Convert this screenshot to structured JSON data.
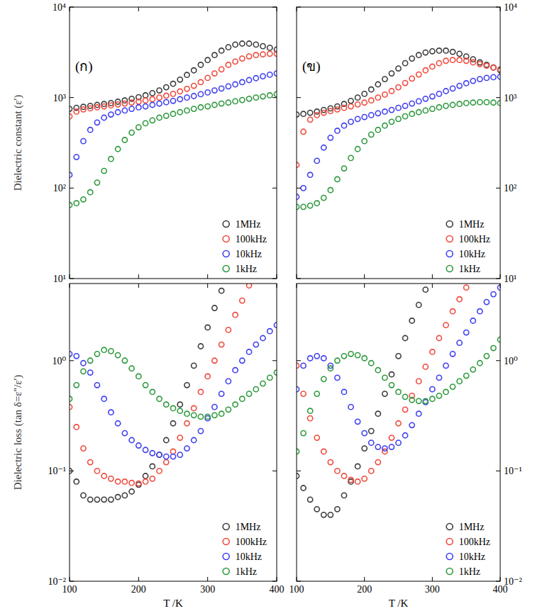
{
  "chart_data": [
    {
      "type": "scatter",
      "title": "(ก)",
      "y_label": "Dielectric constant (ε')",
      "log": "y",
      "legend": "lower right",
      "tick_labels": "y",
      "marker": "circle",
      "xlim": [
        100,
        400
      ],
      "xticks": [
        100,
        200,
        300,
        400
      ],
      "ylim": [
        10,
        10000
      ],
      "yticks": [
        {
          "value": 10,
          "label": "10¹"
        },
        {
          "value": 100,
          "label": "10²"
        },
        {
          "value": 1000,
          "label": "10³"
        },
        {
          "value": 10000,
          "label": "10⁴"
        }
      ],
      "x": [
        100,
        110,
        120,
        130,
        140,
        150,
        160,
        170,
        180,
        190,
        200,
        210,
        220,
        230,
        240,
        250,
        260,
        270,
        280,
        290,
        300,
        310,
        320,
        330,
        340,
        350,
        360,
        370,
        380,
        390,
        400
      ],
      "series": [
        {
          "name": "1MHz",
          "color": "#3c3c3c",
          "values": [
            750,
            770,
            790,
            810,
            830,
            850,
            870,
            900,
            930,
            970,
            1010,
            1060,
            1120,
            1200,
            1300,
            1420,
            1580,
            1780,
            2000,
            2300,
            2600,
            2950,
            3300,
            3600,
            3850,
            3950,
            3950,
            3850,
            3700,
            3550,
            3400
          ]
        },
        {
          "name": "100kHz",
          "color": "#f04a3e",
          "values": [
            620,
            700,
            740,
            760,
            780,
            800,
            820,
            840,
            860,
            880,
            900,
            930,
            960,
            1000,
            1050,
            1100,
            1170,
            1250,
            1350,
            1480,
            1650,
            1850,
            2050,
            2300,
            2500,
            2700,
            2850,
            2950,
            3000,
            3050,
            3050
          ]
        },
        {
          "name": "10kHz",
          "color": "#4040f0",
          "values": [
            140,
            220,
            330,
            440,
            530,
            600,
            650,
            690,
            720,
            750,
            780,
            800,
            830,
            860,
            890,
            920,
            960,
            1000,
            1040,
            1090,
            1140,
            1200,
            1260,
            1330,
            1400,
            1480,
            1560,
            1640,
            1720,
            1790,
            1850
          ]
        },
        {
          "name": "1kHz",
          "color": "#2f9a3e",
          "values": [
            65,
            68,
            75,
            90,
            115,
            155,
            210,
            270,
            340,
            410,
            470,
            520,
            560,
            600,
            630,
            660,
            690,
            720,
            750,
            780,
            800,
            830,
            860,
            880,
            910,
            940,
            970,
            1000,
            1030,
            1060,
            1090
          ]
        }
      ]
    },
    {
      "type": "scatter",
      "title": "(ข)",
      "log": "y",
      "legend": "lower right",
      "tick_labels": "y",
      "marker": "circle",
      "xlim": [
        100,
        400
      ],
      "xticks": [
        100,
        200,
        300,
        400
      ],
      "ylim": [
        10,
        10000
      ],
      "yticks": [
        {
          "value": 10,
          "label": "10¹"
        },
        {
          "value": 100,
          "label": "10²"
        },
        {
          "value": 1000,
          "label": "10³"
        },
        {
          "value": 10000,
          "label": "10⁴"
        }
      ],
      "x": [
        100,
        110,
        120,
        130,
        140,
        150,
        160,
        170,
        180,
        190,
        200,
        210,
        220,
        230,
        240,
        250,
        260,
        270,
        280,
        290,
        300,
        310,
        320,
        330,
        340,
        350,
        360,
        370,
        380,
        390,
        400
      ],
      "series": [
        {
          "name": "1MHz",
          "color": "#3c3c3c",
          "values": [
            650,
            660,
            680,
            700,
            730,
            760,
            800,
            850,
            920,
            1000,
            1100,
            1230,
            1400,
            1600,
            1850,
            2100,
            2400,
            2700,
            2950,
            3150,
            3250,
            3300,
            3300,
            3200,
            3050,
            2850,
            2650,
            2450,
            2300,
            2150,
            2000
          ]
        },
        {
          "name": "100kHz",
          "color": "#f04a3e",
          "values": [
            180,
            420,
            570,
            640,
            680,
            710,
            740,
            770,
            800,
            840,
            880,
            930,
            1000,
            1080,
            1180,
            1300,
            1450,
            1620,
            1800,
            2000,
            2200,
            2400,
            2550,
            2600,
            2600,
            2550,
            2450,
            2350,
            2250,
            2150,
            2050
          ]
        },
        {
          "name": "10kHz",
          "color": "#4040f0",
          "values": [
            80,
            100,
            140,
            200,
            280,
            360,
            430,
            490,
            540,
            580,
            610,
            640,
            670,
            700,
            730,
            770,
            810,
            860,
            910,
            970,
            1030,
            1100,
            1180,
            1260,
            1350,
            1440,
            1530,
            1600,
            1650,
            1680,
            1700
          ]
        },
        {
          "name": "1kHz",
          "color": "#2f9a3e",
          "values": [
            62,
            62,
            64,
            68,
            78,
            95,
            125,
            165,
            215,
            270,
            330,
            390,
            440,
            490,
            540,
            580,
            620,
            660,
            690,
            720,
            750,
            780,
            810,
            830,
            850,
            870,
            880,
            890,
            890,
            880,
            870
          ]
        }
      ]
    },
    {
      "type": "scatter",
      "x_label": "T /K",
      "y_label": "Dielectric loss (tan δ=ε''/ε')",
      "log": "y",
      "legend": "lower right",
      "tick_labels": true,
      "marker": "circle",
      "xlim": [
        100,
        400
      ],
      "xticks": [
        100,
        200,
        300,
        400
      ],
      "ylim": [
        0.01,
        5
      ],
      "yticks": [
        {
          "value": 0.01,
          "label": "10⁻²"
        },
        {
          "value": 0.1,
          "label": "10⁻¹"
        },
        {
          "value": 1,
          "label": "10⁰"
        }
      ],
      "x": [
        100,
        110,
        120,
        130,
        140,
        150,
        160,
        170,
        180,
        190,
        200,
        210,
        220,
        230,
        240,
        250,
        260,
        270,
        280,
        290,
        300,
        310,
        320,
        330,
        340,
        350,
        360,
        370,
        380,
        390,
        400
      ],
      "series": [
        {
          "name": "1MHz",
          "color": "#3c3c3c",
          "values": [
            0.1,
            0.08,
            0.06,
            0.055,
            0.055,
            0.055,
            0.055,
            0.058,
            0.06,
            0.065,
            0.075,
            0.09,
            0.11,
            0.14,
            0.19,
            0.27,
            0.4,
            0.6,
            0.9,
            1.35,
            2.0,
            3.0,
            4.3,
            null,
            null,
            null,
            null,
            null,
            null,
            null,
            null
          ]
        },
        {
          "name": "100kHz",
          "color": "#f04a3e",
          "values": [
            0.38,
            0.25,
            0.16,
            0.12,
            0.1,
            0.09,
            0.085,
            0.08,
            0.08,
            0.078,
            0.077,
            0.08,
            0.085,
            0.1,
            0.12,
            0.15,
            0.2,
            0.27,
            0.37,
            0.52,
            0.72,
            1.0,
            1.4,
            1.9,
            2.6,
            3.5,
            4.8,
            null,
            null,
            null,
            null
          ]
        },
        {
          "name": "10kHz",
          "color": "#4040f0",
          "values": [
            1.15,
            1.1,
            0.95,
            0.78,
            0.6,
            0.45,
            0.34,
            0.27,
            0.22,
            0.19,
            0.17,
            0.155,
            0.145,
            0.14,
            0.135,
            0.135,
            0.14,
            0.16,
            0.19,
            0.23,
            0.3,
            0.38,
            0.5,
            0.65,
            0.82,
            1.0,
            1.2,
            1.4,
            1.6,
            1.85,
            2.1
          ]
        },
        {
          "name": "1kHz",
          "color": "#2f9a3e",
          "values": [
            0.45,
            0.6,
            0.8,
            1.0,
            1.15,
            1.25,
            1.22,
            1.12,
            1.0,
            0.85,
            0.72,
            0.6,
            0.52,
            0.45,
            0.4,
            0.37,
            0.35,
            0.33,
            0.32,
            0.31,
            0.31,
            0.32,
            0.33,
            0.36,
            0.4,
            0.45,
            0.5,
            0.55,
            0.62,
            0.7,
            0.78
          ]
        }
      ]
    },
    {
      "type": "scatter",
      "x_label": "T /K",
      "log": "y",
      "legend": "lower right",
      "tick_labels": true,
      "marker": "circle",
      "xlim": [
        100,
        400
      ],
      "xticks": [
        100,
        200,
        300,
        400
      ],
      "ylim": [
        0.01,
        5
      ],
      "yticks": [
        {
          "value": 0.01,
          "label": "10⁻²"
        },
        {
          "value": 0.1,
          "label": "10⁻¹"
        },
        {
          "value": 1,
          "label": "10⁰"
        }
      ],
      "x": [
        100,
        110,
        120,
        130,
        140,
        150,
        160,
        170,
        180,
        190,
        200,
        210,
        220,
        230,
        240,
        250,
        260,
        270,
        280,
        290,
        300,
        310,
        320,
        330,
        340,
        350,
        360,
        370,
        380,
        390,
        400
      ],
      "series": [
        {
          "name": "1MHz",
          "color": "#3c3c3c",
          "values": [
            0.09,
            0.07,
            0.055,
            0.045,
            0.04,
            0.04,
            0.045,
            0.06,
            0.08,
            0.11,
            0.16,
            0.23,
            0.33,
            0.5,
            0.75,
            1.1,
            1.6,
            2.3,
            3.2,
            4.4,
            null,
            null,
            null,
            null,
            null,
            null,
            null,
            null,
            null,
            null,
            null
          ]
        },
        {
          "name": "100kHz",
          "color": "#f04a3e",
          "values": [
            0.9,
            0.5,
            0.3,
            0.2,
            0.15,
            0.12,
            0.1,
            0.09,
            0.083,
            0.08,
            0.085,
            0.1,
            0.12,
            0.15,
            0.2,
            0.27,
            0.36,
            0.48,
            0.65,
            0.88,
            1.2,
            1.6,
            2.1,
            2.8,
            3.6,
            4.6,
            null,
            null,
            null,
            null,
            null
          ]
        },
        {
          "name": "10kHz",
          "color": "#4040f0",
          "values": [
            0.55,
            0.9,
            1.05,
            1.1,
            1.05,
            0.9,
            0.7,
            0.52,
            0.38,
            0.28,
            0.22,
            0.18,
            0.165,
            0.16,
            0.165,
            0.18,
            0.21,
            0.26,
            0.33,
            0.42,
            0.55,
            0.7,
            0.9,
            1.15,
            1.45,
            1.8,
            2.3,
            2.8,
            3.4,
            4.0,
            4.6
          ]
        },
        {
          "name": "1kHz",
          "color": "#2f9a3e",
          "values": [
            0.15,
            0.22,
            0.35,
            0.5,
            0.68,
            0.85,
            1.0,
            1.1,
            1.15,
            1.12,
            1.05,
            0.95,
            0.82,
            0.7,
            0.6,
            0.52,
            0.47,
            0.44,
            0.43,
            0.43,
            0.45,
            0.48,
            0.52,
            0.58,
            0.65,
            0.73,
            0.83,
            0.95,
            1.1,
            1.3,
            1.55
          ]
        }
      ]
    }
  ]
}
